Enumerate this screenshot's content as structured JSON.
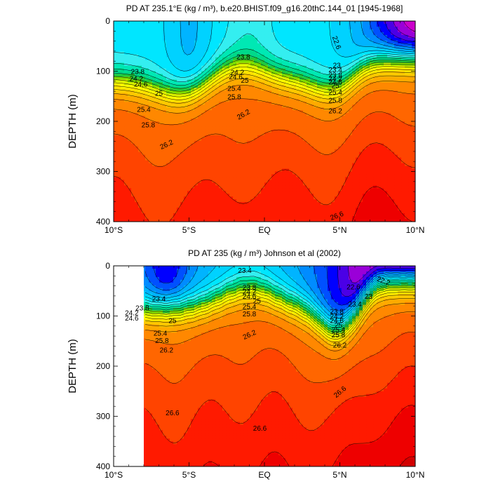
{
  "chart_data": [
    {
      "type": "contour",
      "title": "PD AT 235.1°E (kg / m³), b.e20.BHIST.f09_g16.20thC.144_01 [1945-1968]",
      "xlabel": "",
      "ylabel": "DEPTH (m)",
      "xlim": [
        -10,
        10
      ],
      "ylim": [
        400,
        0
      ],
      "x_ticks": [
        "10°S",
        "5°S",
        "EQ",
        "5°N",
        "10°N"
      ],
      "y_ticks": [
        "0",
        "100",
        "200",
        "300",
        "400"
      ],
      "data_xmin": -10,
      "contour_levels": [
        22.2,
        22.4,
        22.6,
        22.8,
        23.0,
        23.2,
        23.4,
        23.6,
        23.8,
        24.0,
        24.2,
        24.4,
        24.6,
        24.8,
        25.0,
        25.2,
        25.4,
        25.6,
        25.8,
        26.0,
        26.2,
        26.4,
        26.6,
        26.8
      ],
      "colors": [
        "#cc00cc",
        "#9a00d8",
        "#4b00e6",
        "#0000ff",
        "#0050ff",
        "#008cff",
        "#00b4ff",
        "#00d2ff",
        "#00e6ff",
        "#34eef0",
        "#00e8b4",
        "#00d98a",
        "#22c83c",
        "#7fdc00",
        "#d8f000",
        "#ffff00",
        "#ffe200",
        "#ffc800",
        "#ffaa00",
        "#ff8800",
        "#ff6600",
        "#ff4400",
        "#ff1a00",
        "#ee0000",
        "#d20000"
      ],
      "labels": [
        {
          "text": "22.6",
          "x": 4.8,
          "y": 43,
          "rot": 70
        },
        {
          "text": "23",
          "x": 4.8,
          "y": 88
        },
        {
          "text": "23.4",
          "x": 4.7,
          "y": 97
        },
        {
          "text": "23.8",
          "x": -8.4,
          "y": 101
        },
        {
          "text": "23.8",
          "x": -1.4,
          "y": 71
        },
        {
          "text": "23.8",
          "x": 4.7,
          "y": 108
        },
        {
          "text": "24.2",
          "x": -8.5,
          "y": 115
        },
        {
          "text": "24.2",
          "x": -1.8,
          "y": 102
        },
        {
          "text": "24.2",
          "x": 4.7,
          "y": 115
        },
        {
          "text": "24.6",
          "x": -8.2,
          "y": 126
        },
        {
          "text": "24.6",
          "x": -1.9,
          "y": 111
        },
        {
          "text": "24.6",
          "x": 4.7,
          "y": 122
        },
        {
          "text": "25",
          "x": -7.0,
          "y": 144
        },
        {
          "text": "25",
          "x": -1.3,
          "y": 118
        },
        {
          "text": "25",
          "x": 4.7,
          "y": 129
        },
        {
          "text": "25.4",
          "x": -8.0,
          "y": 176
        },
        {
          "text": "25.4",
          "x": -2.0,
          "y": 134
        },
        {
          "text": "25.4",
          "x": 4.7,
          "y": 142
        },
        {
          "text": "25.8",
          "x": -7.7,
          "y": 207
        },
        {
          "text": "25.8",
          "x": -2.0,
          "y": 151
        },
        {
          "text": "25.8",
          "x": 4.7,
          "y": 158
        },
        {
          "text": "26.2",
          "x": -6.5,
          "y": 246,
          "rot": -25
        },
        {
          "text": "26.2",
          "x": -1.4,
          "y": 186,
          "rot": -30
        },
        {
          "text": "26.2",
          "x": 4.7,
          "y": 179
        },
        {
          "text": "26.6",
          "x": 4.8,
          "y": 388,
          "rot": -20
        }
      ]
    },
    {
      "type": "contour",
      "title": "PD AT 235 (kg / m³) Johnson et al (2002)",
      "xlabel": "",
      "ylabel": "DEPTH (m)",
      "xlim": [
        -10,
        10
      ],
      "ylim": [
        400,
        0
      ],
      "x_ticks": [
        "10°S",
        "5°S",
        "EQ",
        "5°N",
        "10°N"
      ],
      "y_ticks": [
        "0",
        "100",
        "200",
        "300",
        "400"
      ],
      "data_xmin": -8,
      "contour_levels": [
        22.2,
        22.4,
        22.6,
        22.8,
        23.0,
        23.2,
        23.4,
        23.6,
        23.8,
        24.0,
        24.2,
        24.4,
        24.6,
        24.8,
        25.0,
        25.2,
        25.4,
        25.6,
        25.8,
        26.0,
        26.2,
        26.4,
        26.6,
        26.8
      ],
      "colors": [
        "#cc00cc",
        "#9a00d8",
        "#4b00e6",
        "#0000ff",
        "#0050ff",
        "#008cff",
        "#00b4ff",
        "#00d2ff",
        "#00e6ff",
        "#34eef0",
        "#00e8b4",
        "#00d98a",
        "#22c83c",
        "#7fdc00",
        "#d8f000",
        "#ffff00",
        "#ffe200",
        "#ffc800",
        "#ffaa00",
        "#ff8800",
        "#ff6600",
        "#ff4400",
        "#ff1a00",
        "#ee0000",
        "#d20000"
      ],
      "labels": [
        {
          "text": "22.2",
          "x": 7.9,
          "y": 30,
          "rot": 20
        },
        {
          "text": "22.6",
          "x": 5.9,
          "y": 42
        },
        {
          "text": "23",
          "x": 6.9,
          "y": 61
        },
        {
          "text": "23.4",
          "x": -1.3,
          "y": 9
        },
        {
          "text": "23.4",
          "x": -7.0,
          "y": 66
        },
        {
          "text": "23.4",
          "x": 6.0,
          "y": 76
        },
        {
          "text": "23.8",
          "x": -1.0,
          "y": 43
        },
        {
          "text": "23.8",
          "x": -8.1,
          "y": 84
        },
        {
          "text": "23.8",
          "x": 4.8,
          "y": 91
        },
        {
          "text": "24.2",
          "x": -1.0,
          "y": 52
        },
        {
          "text": "24.2",
          "x": -8.8,
          "y": 94
        },
        {
          "text": "24.2",
          "x": 4.8,
          "y": 101
        },
        {
          "text": "24.6",
          "x": -1.0,
          "y": 61
        },
        {
          "text": "24.6",
          "x": -8.8,
          "y": 104
        },
        {
          "text": "24.6",
          "x": 4.8,
          "y": 109
        },
        {
          "text": "25",
          "x": -6.1,
          "y": 109
        },
        {
          "text": "25",
          "x": -0.5,
          "y": 70
        },
        {
          "text": "25",
          "x": 4.9,
          "y": 118
        },
        {
          "text": "25.4",
          "x": -6.9,
          "y": 134
        },
        {
          "text": "25.4",
          "x": -1.0,
          "y": 81
        },
        {
          "text": "25.4",
          "x": 4.9,
          "y": 127
        },
        {
          "text": "25.8",
          "x": -6.8,
          "y": 149
        },
        {
          "text": "25.8",
          "x": -1.0,
          "y": 96
        },
        {
          "text": "25.8",
          "x": 4.9,
          "y": 138
        },
        {
          "text": "26.2",
          "x": -6.5,
          "y": 168
        },
        {
          "text": "26.2",
          "x": -1.0,
          "y": 137,
          "rot": -25
        },
        {
          "text": "26.2",
          "x": 5.0,
          "y": 158
        },
        {
          "text": "26.6",
          "x": -6.1,
          "y": 293
        },
        {
          "text": "26.6",
          "x": -0.3,
          "y": 324
        },
        {
          "text": "26.6",
          "x": 5.0,
          "y": 251,
          "rot": -40
        }
      ]
    }
  ]
}
